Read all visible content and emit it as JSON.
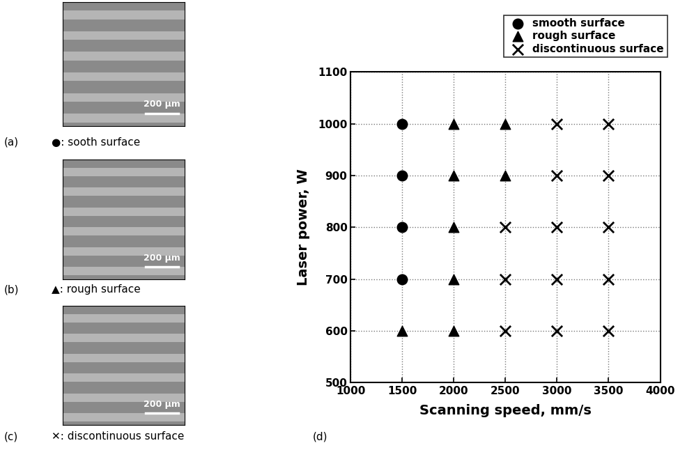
{
  "chart_data": {
    "type": "scatter",
    "x_label": "Scanning speed, mm/s",
    "y_label": "Laser power, W",
    "panel_label": "(d)",
    "xlim": [
      1000,
      4000
    ],
    "xticks": [
      1000,
      1500,
      2000,
      2500,
      3000,
      3500,
      4000
    ],
    "ylim": [
      500,
      1100
    ],
    "yticks": [
      500,
      600,
      700,
      800,
      900,
      1000,
      1100
    ],
    "grid": true,
    "legend": "upper right",
    "series": [
      {
        "name": "smooth surface",
        "color": "#000000",
        "marker": "circle",
        "x": [
          1500,
          1500,
          1500,
          1500
        ],
        "values": [
          700,
          800,
          900,
          1000
        ]
      },
      {
        "name": "rough surface",
        "color": "#000000",
        "marker": "triangle",
        "x": [
          1500,
          2000,
          2000,
          2000,
          2000,
          2000,
          2500,
          2500
        ],
        "values": [
          600,
          600,
          700,
          800,
          900,
          1000,
          900,
          1000
        ]
      },
      {
        "name": "discontinuous surface",
        "color": "#000000",
        "marker": "x",
        "x": [
          2500,
          2500,
          2500,
          3000,
          3000,
          3000,
          3000,
          3000,
          3500,
          3500,
          3500,
          3500,
          3500
        ],
        "values": [
          600,
          700,
          800,
          600,
          700,
          800,
          900,
          1000,
          600,
          700,
          800,
          900,
          1000
        ]
      }
    ]
  },
  "micrographs": [
    {
      "label": "(a)",
      "caption": "●: sooth surface",
      "scale_bar": "200 μm"
    },
    {
      "label": "(b)",
      "caption": "▲: rough surface",
      "scale_bar": "200 μm"
    },
    {
      "label": "(c)",
      "caption": "✕: discontinuous surface",
      "scale_bar": "200 μm"
    }
  ]
}
